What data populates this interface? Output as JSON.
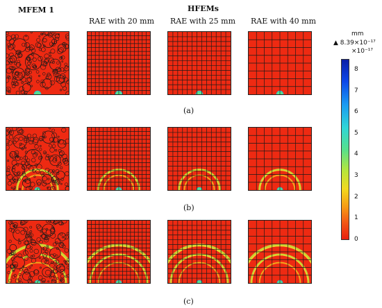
{
  "headers": {
    "mfem": "MFEM 1",
    "hfems": "HFEMs",
    "col1": "RAE with 20 mm",
    "col2": "RAE with 25 mm",
    "col3": "RAE with 40 mm"
  },
  "rows": [
    {
      "label": "(a)"
    },
    {
      "label": "(b)"
    },
    {
      "label": "(c)"
    }
  ],
  "colorbar": {
    "unit": "mm",
    "max_marker": "▲ 8.39×10⁻¹⁷",
    "scale": "×10⁻¹⁷",
    "ticks": [
      "8",
      "7",
      "6",
      "5",
      "4",
      "3",
      "2",
      "1",
      "0"
    ]
  },
  "colors": {
    "background_field": "#ee2a12",
    "mesh_lines": "#1a1a1a"
  }
}
